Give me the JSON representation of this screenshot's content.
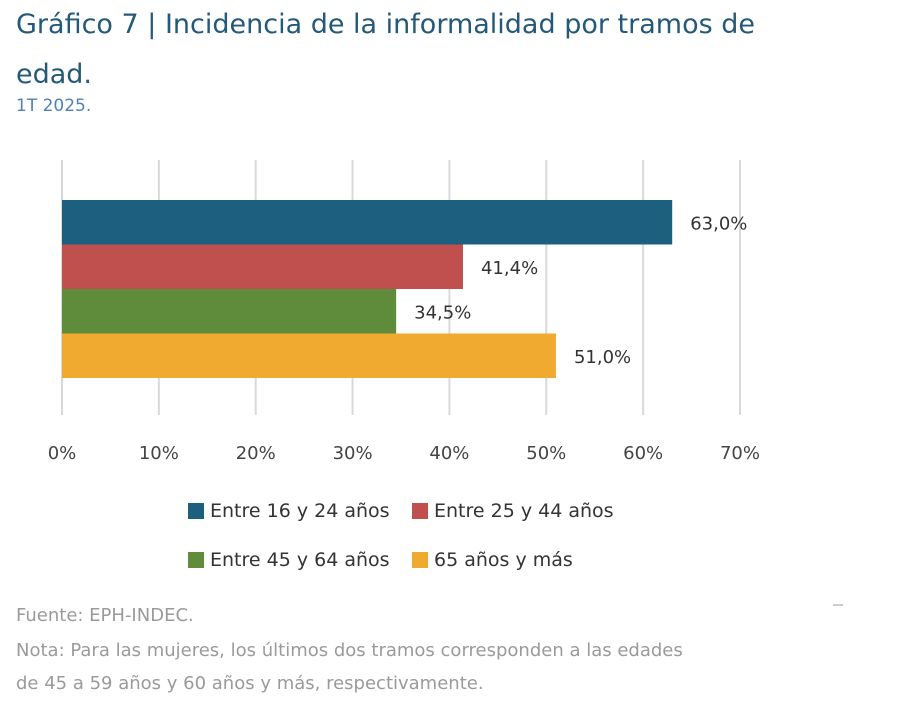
{
  "title": "Gráfico 7 | Incidencia de la informalidad por tramos de edad.",
  "subtitle": "1T 2025.",
  "chart_data": {
    "type": "bar",
    "orientation": "horizontal",
    "categories": [
      "Entre 16 y 24 años",
      "Entre 25 y 44 años",
      "Entre 45 y 64 años",
      "65 años y más"
    ],
    "values": [
      63.0,
      41.4,
      34.5,
      51.0
    ],
    "value_labels": [
      "63,0%",
      "41,4%",
      "34,5%",
      "51,0%"
    ],
    "colors": [
      "#1d5f7f",
      "#c0504d",
      "#5e8c3b",
      "#f0aa2f"
    ],
    "xlim": [
      0,
      70
    ],
    "xticks": [
      0,
      10,
      20,
      30,
      40,
      50,
      60,
      70
    ],
    "xtick_labels": [
      "0%",
      "10%",
      "20%",
      "30%",
      "40%",
      "50%",
      "60%",
      "70%"
    ],
    "grid": true,
    "legend_position": "bottom"
  },
  "source": "Fuente: EPH-INDEC.",
  "note_line1": "Nota: Para las mujeres, los últimos dos tramos corresponden a las edades",
  "note_line2": "de 45 a 59 años y 60 años y más, respectivamente."
}
